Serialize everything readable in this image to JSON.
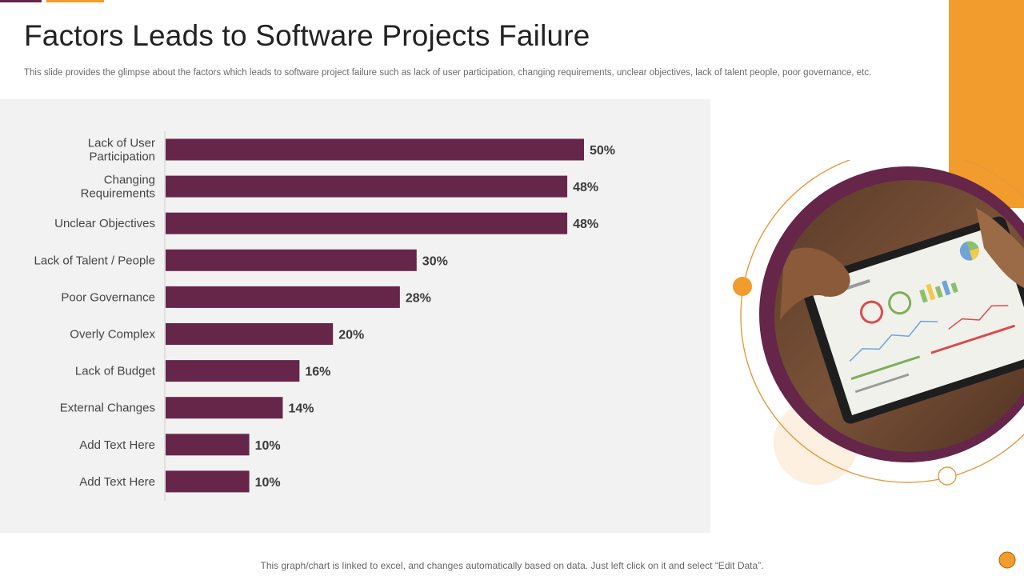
{
  "page": {
    "title": "Factors Leads to Software Projects Failure",
    "subtitle": "This slide provides the glimpse about the factors which leads to software project failure such as lack of user participation, changing requirements, unclear objectives, lack of talent people, poor governance, etc.",
    "footer": "This graph/chart is linked to excel, and changes automatically based on data. Just left click on it and select “Edit Data”."
  },
  "colors": {
    "bar": "#65264a",
    "accent_orange": "#f19c2c",
    "panel_bg": "#f2f2f2"
  },
  "chart_data": {
    "type": "bar",
    "orientation": "horizontal",
    "categories": [
      [
        "Lack of User",
        "Participation"
      ],
      [
        "Changing",
        "Requirements"
      ],
      [
        "Unclear Objectives"
      ],
      [
        "Lack of Talent / People"
      ],
      [
        "Poor Governance"
      ],
      [
        "Overly Complex"
      ],
      [
        "Lack of Budget"
      ],
      [
        "External Changes"
      ],
      [
        "Add Text Here"
      ],
      [
        "Add Text Here"
      ]
    ],
    "values": [
      50,
      48,
      48,
      30,
      28,
      20,
      16,
      14,
      10,
      10
    ],
    "value_labels": [
      "50%",
      "48%",
      "48%",
      "30%",
      "28%",
      "20%",
      "16%",
      "14%",
      "10%",
      "10%"
    ],
    "unit": "%",
    "xlim": [
      0,
      50
    ],
    "grid": false,
    "legend": "none"
  },
  "image": {
    "subject": "hands-holding-tablet-with-dashboard-photo"
  }
}
